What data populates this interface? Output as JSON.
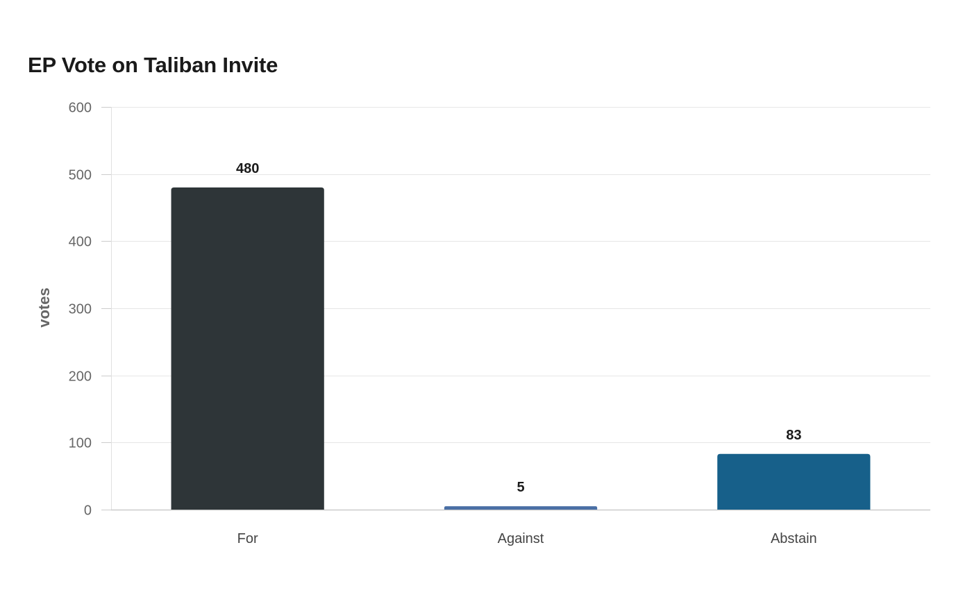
{
  "chart_data": {
    "type": "bar",
    "title": "EP Vote on Taliban Invite",
    "xlabel": "",
    "ylabel": "votes",
    "categories": [
      "For",
      "Against",
      "Abstain"
    ],
    "values": [
      480,
      5,
      83
    ],
    "colors": [
      "#2e3538",
      "#4a6fa5",
      "#17608a"
    ],
    "ylim": [
      0,
      600
    ],
    "yticks": [
      0,
      100,
      200,
      300,
      400,
      500,
      600
    ],
    "grid": true,
    "legend": "none",
    "data_labels": true
  }
}
